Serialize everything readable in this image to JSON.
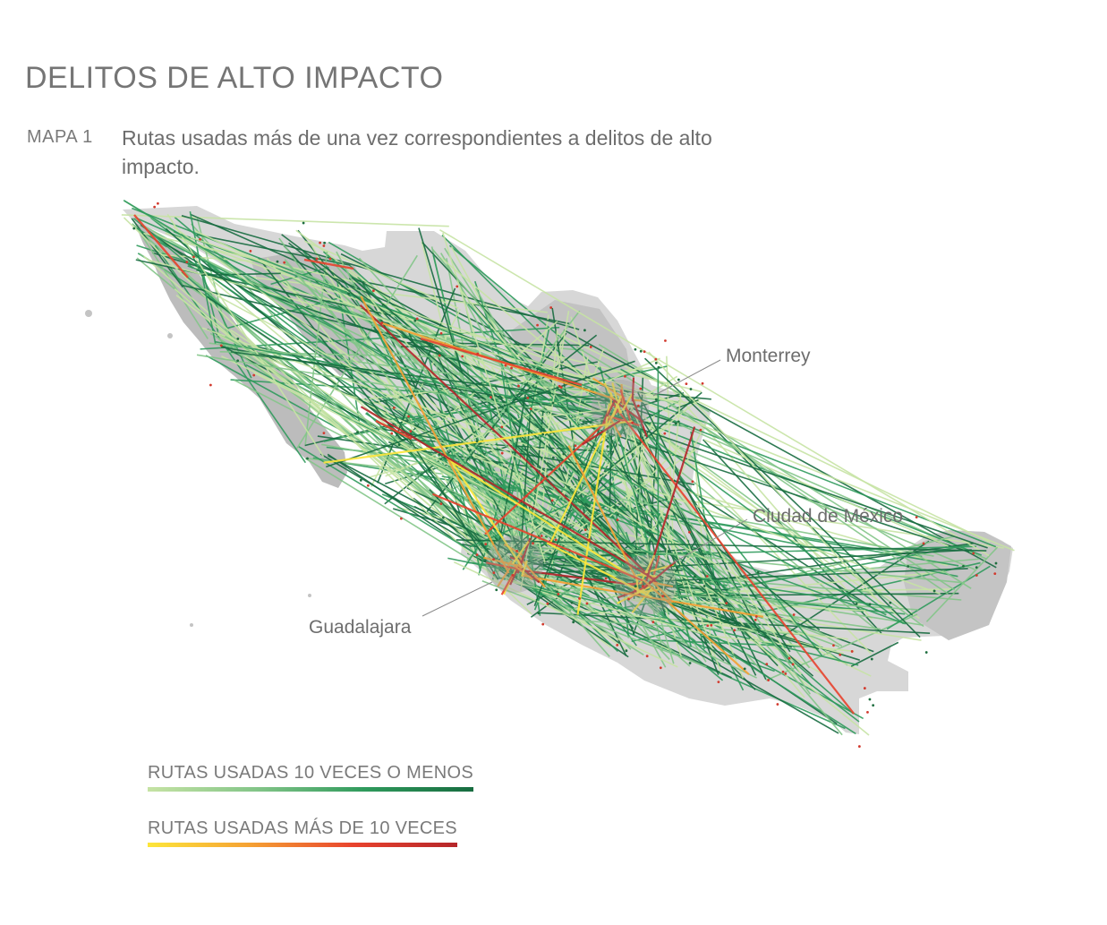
{
  "header": {
    "title": "DELITOS DE ALTO IMPACTO",
    "map_label": "MAPA 1",
    "description": "Rutas usadas más de una vez correspondientes a delitos de alto impacto."
  },
  "cities": {
    "monterrey": "Monterrey",
    "cdmx": "Ciudad de México",
    "guadalajara": "Guadalajara"
  },
  "legend": {
    "low": {
      "label": "RUTAS USADAS 10 VECES O MENOS",
      "colors": [
        "#c6e3a4",
        "#83c588",
        "#2f9a5c",
        "#176c40"
      ]
    },
    "high": {
      "label": "RUTAS USADAS MÁS DE 10 VECES",
      "colors": [
        "#fde63a",
        "#f5a033",
        "#e8422d",
        "#b5262a"
      ]
    }
  },
  "map_colors": {
    "land": "#d7d7d7",
    "land_dark": "#b4b4b4",
    "hub": "#cf3a35"
  }
}
